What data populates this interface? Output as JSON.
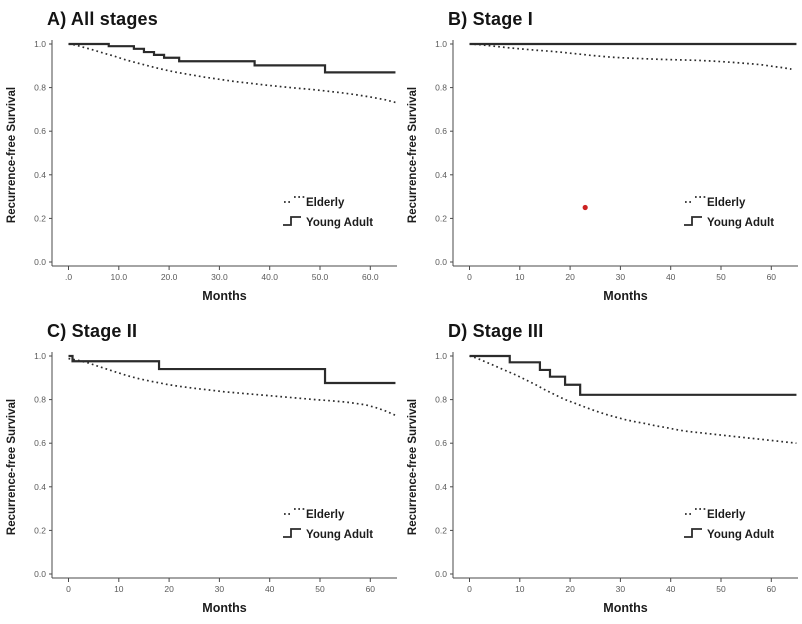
{
  "page": {
    "background": "#ffffff"
  },
  "colors": {
    "curve": "#2b2b2b",
    "axis": "#4a4a4a",
    "tick_text": "#5a5a5a",
    "title_text": "#141414",
    "red_marker": "#cc2222"
  },
  "legend": {
    "elderly": "Elderly",
    "young_adult": "Young Adult",
    "position": "inside-lower-right"
  },
  "axes": {
    "ylabel": "Recurrence-free Survival",
    "xlabel": "Months",
    "yticks": {
      "values": [
        0.0,
        0.2,
        0.4,
        0.6,
        0.8,
        1.0
      ],
      "labels": [
        "0.0",
        "0.2",
        "0.4",
        "0.6",
        "0.8",
        "1.0"
      ]
    },
    "ylim": [
      0,
      1.05
    ],
    "xlim": [
      0,
      65
    ],
    "grid": false
  },
  "chart_data": [
    {
      "id": "A",
      "title": "A) All stages",
      "type": "line",
      "xlabel": "Months",
      "ylabel": "Recurrence-free Survival",
      "xticks": {
        "values": [
          0,
          10,
          20,
          30,
          40,
          50,
          60
        ],
        "labels": [
          ".0",
          "10.0",
          "20.0",
          "30.0",
          "40.0",
          "50.0",
          "60.0"
        ]
      },
      "series": [
        {
          "name": "Young Adult",
          "style": "solid-step",
          "end": 65,
          "steps": [
            [
              0,
              1.0
            ],
            [
              8,
              0.99
            ],
            [
              13,
              0.978
            ],
            [
              15,
              0.963
            ],
            [
              17,
              0.95
            ],
            [
              19,
              0.937
            ],
            [
              22,
              0.921
            ],
            [
              37,
              0.902
            ],
            [
              51,
              0.87
            ]
          ]
        },
        {
          "name": "Elderly",
          "style": "dotted",
          "points": [
            [
              0,
              1.0
            ],
            [
              1.5,
              0.995
            ],
            [
              3,
              0.985
            ],
            [
              5,
              0.972
            ],
            [
              7,
              0.958
            ],
            [
              9,
              0.945
            ],
            [
              11,
              0.93
            ],
            [
              13,
              0.917
            ],
            [
              15,
              0.905
            ],
            [
              17,
              0.893
            ],
            [
              19,
              0.882
            ],
            [
              21,
              0.872
            ],
            [
              24,
              0.86
            ],
            [
              27,
              0.848
            ],
            [
              30,
              0.838
            ],
            [
              33,
              0.828
            ],
            [
              36,
              0.82
            ],
            [
              39,
              0.812
            ],
            [
              42,
              0.805
            ],
            [
              45,
              0.798
            ],
            [
              48,
              0.792
            ],
            [
              51,
              0.785
            ],
            [
              54,
              0.777
            ],
            [
              57,
              0.768
            ],
            [
              60,
              0.757
            ],
            [
              63,
              0.744
            ],
            [
              65,
              0.732
            ]
          ]
        }
      ],
      "annotations": []
    },
    {
      "id": "B",
      "title": "B) Stage I",
      "type": "line",
      "xlabel": "Months",
      "ylabel": "Recurrence-free Survival",
      "xticks": {
        "values": [
          0,
          10,
          20,
          30,
          40,
          50,
          60
        ],
        "labels": [
          "0",
          "10",
          "20",
          "30",
          "40",
          "50",
          "60"
        ]
      },
      "series": [
        {
          "name": "Young Adult",
          "style": "solid-step",
          "end": 65,
          "steps": [
            [
              0,
              1.0
            ]
          ]
        },
        {
          "name": "Elderly",
          "style": "dotted",
          "points": [
            [
              0,
              1.0
            ],
            [
              2,
              0.997
            ],
            [
              4,
              0.992
            ],
            [
              6,
              0.987
            ],
            [
              8,
              0.982
            ],
            [
              10,
              0.978
            ],
            [
              12,
              0.974
            ],
            [
              14,
              0.97
            ],
            [
              16,
              0.967
            ],
            [
              18,
              0.963
            ],
            [
              20,
              0.958
            ],
            [
              22,
              0.953
            ],
            [
              24,
              0.948
            ],
            [
              26,
              0.944
            ],
            [
              28,
              0.94
            ],
            [
              30,
              0.937
            ],
            [
              33,
              0.934
            ],
            [
              36,
              0.931
            ],
            [
              39,
              0.929
            ],
            [
              42,
              0.927
            ],
            [
              45,
              0.925
            ],
            [
              48,
              0.922
            ],
            [
              51,
              0.918
            ],
            [
              54,
              0.913
            ],
            [
              56,
              0.909
            ],
            [
              58,
              0.905
            ],
            [
              60,
              0.898
            ],
            [
              62,
              0.892
            ],
            [
              64,
              0.885
            ]
          ]
        }
      ],
      "annotations": [
        {
          "type": "dot",
          "x": 23,
          "y": 0.25,
          "color": "#cc2222"
        }
      ]
    },
    {
      "id": "C",
      "title": "C) Stage II",
      "type": "line",
      "xlabel": "Months",
      "ylabel": "Recurrence-free Survival",
      "xticks": {
        "values": [
          0,
          10,
          20,
          30,
          40,
          50,
          60
        ],
        "labels": [
          "0",
          "10",
          "20",
          "30",
          "40",
          "50",
          "60"
        ]
      },
      "series": [
        {
          "name": "Young Adult",
          "style": "solid-step",
          "end": 65,
          "steps": [
            [
              0,
              1.0
            ],
            [
              0.8,
              0.976
            ],
            [
              18,
              0.94
            ],
            [
              51,
              0.876
            ]
          ]
        },
        {
          "name": "Elderly",
          "style": "dotted",
          "points": [
            [
              0,
              0.988
            ],
            [
              2,
              0.98
            ],
            [
              4,
              0.968
            ],
            [
              6,
              0.952
            ],
            [
              8,
              0.937
            ],
            [
              10,
              0.922
            ],
            [
              12,
              0.908
            ],
            [
              14,
              0.896
            ],
            [
              16,
              0.886
            ],
            [
              18,
              0.877
            ],
            [
              20,
              0.868
            ],
            [
              22,
              0.861
            ],
            [
              25,
              0.852
            ],
            [
              28,
              0.844
            ],
            [
              31,
              0.836
            ],
            [
              34,
              0.83
            ],
            [
              37,
              0.824
            ],
            [
              40,
              0.818
            ],
            [
              43,
              0.812
            ],
            [
              46,
              0.806
            ],
            [
              49,
              0.8
            ],
            [
              52,
              0.795
            ],
            [
              55,
              0.789
            ],
            [
              57,
              0.783
            ],
            [
              59,
              0.776
            ],
            [
              61,
              0.764
            ],
            [
              63,
              0.748
            ],
            [
              65,
              0.728
            ]
          ]
        }
      ],
      "annotations": []
    },
    {
      "id": "D",
      "title": "D) Stage III",
      "type": "line",
      "xlabel": "Months",
      "ylabel": "Recurrence-free Survival",
      "xticks": {
        "values": [
          0,
          10,
          20,
          30,
          40,
          50,
          60
        ],
        "labels": [
          "0",
          "10",
          "20",
          "30",
          "40",
          "50",
          "60"
        ]
      },
      "series": [
        {
          "name": "Young Adult",
          "style": "solid-step",
          "end": 65,
          "steps": [
            [
              0,
              1.0
            ],
            [
              8,
              0.971
            ],
            [
              14,
              0.936
            ],
            [
              16,
              0.905
            ],
            [
              19,
              0.868
            ],
            [
              22,
              0.822
            ]
          ]
        },
        {
          "name": "Elderly",
          "style": "dotted",
          "points": [
            [
              0,
              1.0
            ],
            [
              1.5,
              0.99
            ],
            [
              3,
              0.975
            ],
            [
              5,
              0.955
            ],
            [
              7,
              0.935
            ],
            [
              9,
              0.915
            ],
            [
              11,
              0.893
            ],
            [
              13,
              0.87
            ],
            [
              15,
              0.845
            ],
            [
              17,
              0.822
            ],
            [
              19,
              0.8
            ],
            [
              21,
              0.783
            ],
            [
              23,
              0.765
            ],
            [
              25,
              0.748
            ],
            [
              27,
              0.733
            ],
            [
              29,
              0.72
            ],
            [
              31,
              0.708
            ],
            [
              33,
              0.698
            ],
            [
              35,
              0.69
            ],
            [
              37,
              0.68
            ],
            [
              39,
              0.672
            ],
            [
              41,
              0.663
            ],
            [
              43,
              0.655
            ],
            [
              45,
              0.65
            ],
            [
              47,
              0.645
            ],
            [
              49,
              0.64
            ],
            [
              51,
              0.635
            ],
            [
              53,
              0.63
            ],
            [
              55,
              0.625
            ],
            [
              57,
              0.62
            ],
            [
              59,
              0.615
            ],
            [
              61,
              0.61
            ],
            [
              63,
              0.605
            ],
            [
              65,
              0.6
            ]
          ]
        }
      ],
      "annotations": []
    }
  ]
}
